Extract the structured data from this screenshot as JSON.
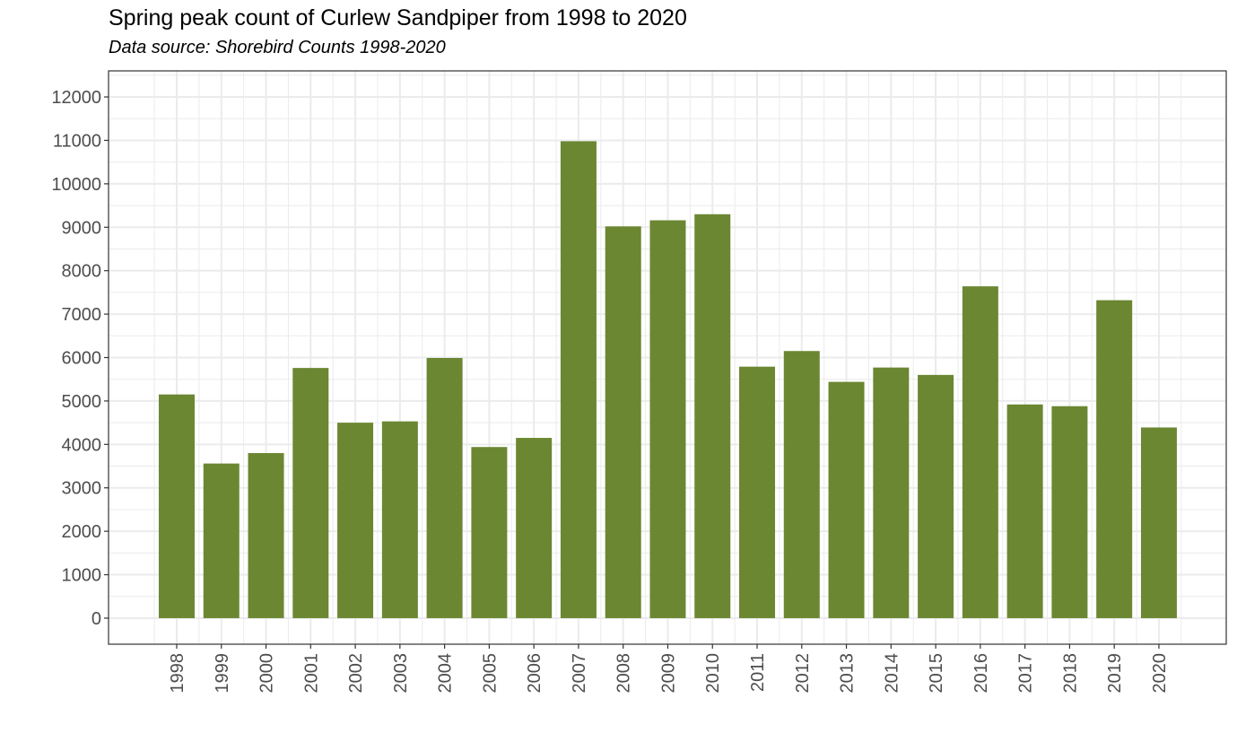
{
  "chart_data": {
    "type": "bar",
    "title": "Spring peak count of Curlew Sandpiper from 1998 to 2020",
    "subtitle": "Data source: Shorebird Counts 1998-2020",
    "xlabel": "",
    "ylabel": "",
    "categories": [
      "1998",
      "1999",
      "2000",
      "2001",
      "2002",
      "2003",
      "2004",
      "2005",
      "2006",
      "2007",
      "2008",
      "2009",
      "2010",
      "2011",
      "2012",
      "2013",
      "2014",
      "2015",
      "2016",
      "2017",
      "2018",
      "2019",
      "2020"
    ],
    "values": [
      5150,
      3560,
      3800,
      5760,
      4500,
      4530,
      5990,
      3940,
      4150,
      10980,
      9020,
      9160,
      9300,
      5790,
      6150,
      5440,
      5770,
      5600,
      7640,
      4920,
      4880,
      7320,
      4390
    ],
    "yticks": [
      "0",
      "1000",
      "2000",
      "3000",
      "4000",
      "5000",
      "6000",
      "7000",
      "8000",
      "9000",
      "10000",
      "11000",
      "12000"
    ],
    "ylim": [
      -600,
      12600
    ],
    "grid": true,
    "legend": "none",
    "colors": {
      "bar": "#6b8732",
      "grid": "#ebebeb",
      "panel_border": "#333333",
      "tick_text": "#4d4d4d"
    }
  }
}
